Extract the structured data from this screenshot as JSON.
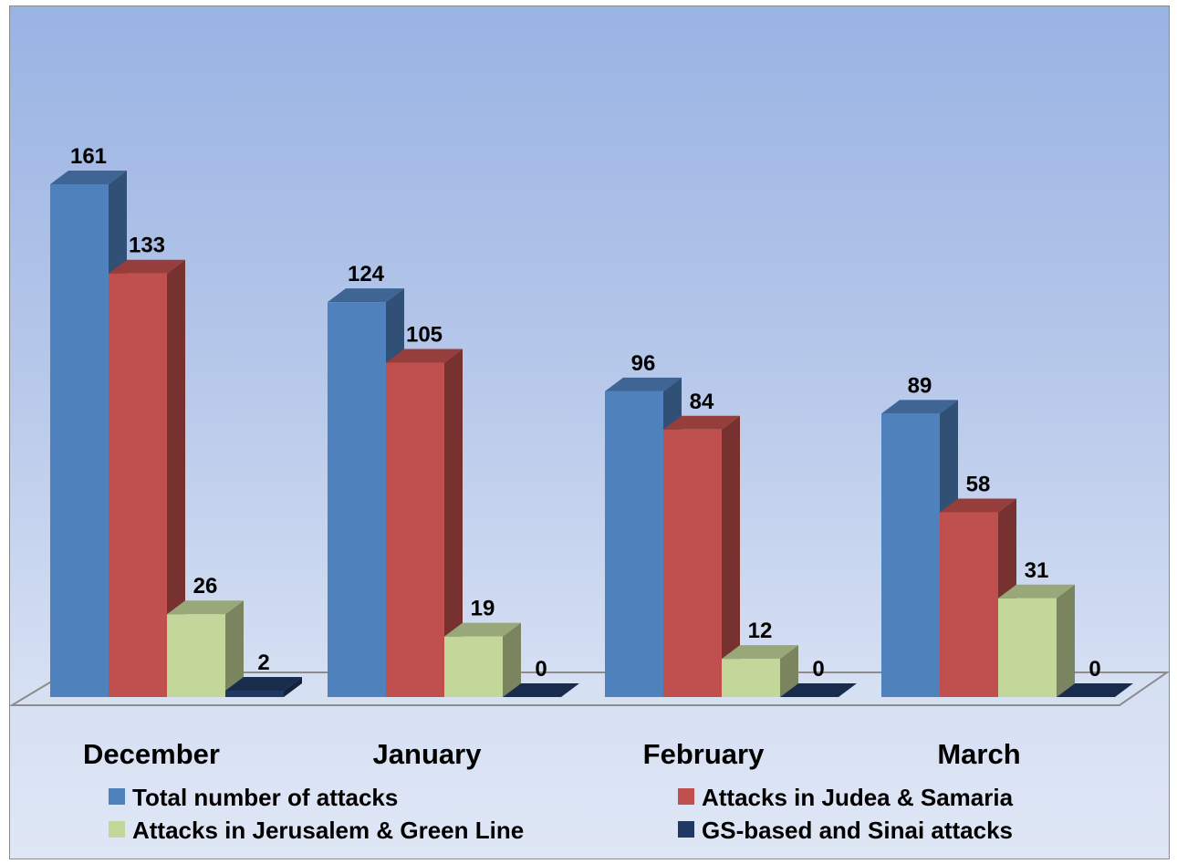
{
  "chart_data": {
    "type": "bar",
    "categories": [
      "December",
      "January",
      "February",
      "March"
    ],
    "series": [
      {
        "name": "Total number of attacks",
        "values": [
          161,
          124,
          96,
          89
        ],
        "color": "#4f81bd"
      },
      {
        "name": "Attacks in Judea & Samaria",
        "values": [
          133,
          105,
          84,
          58
        ],
        "color": "#c0504d"
      },
      {
        "name": "Attacks in Jerusalem & Green Line",
        "values": [
          26,
          19,
          12,
          31
        ],
        "color": "#c4d79b"
      },
      {
        "name": "GS-based and Sinai attacks",
        "values": [
          2,
          0,
          0,
          0
        ],
        "color": "#1f3864"
      }
    ],
    "title": "",
    "xlabel": "",
    "ylabel": "",
    "ylim": [
      0,
      180
    ],
    "grid": false,
    "legend_position": "bottom",
    "style": "3d-clustered-column"
  }
}
